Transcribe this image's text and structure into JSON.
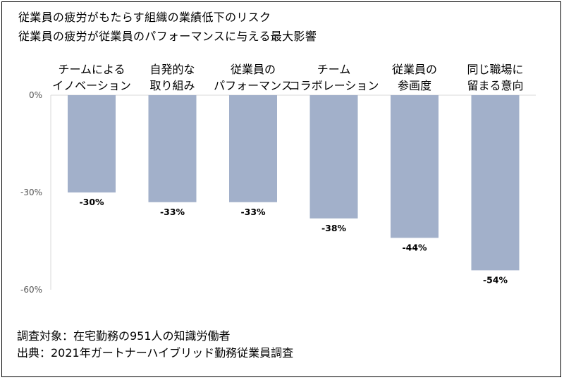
{
  "title_lines": [
    "従業員の疲労がもたらす組織の業績低下のリスク",
    "従業員の疲労が従業員のパフォーマンスに与える最大影響"
  ],
  "notes": [
    "調査対象：在宅勤務の951人の知識労働者",
    "出典：2021年ガートナーハイブリッド勤務従業員調査"
  ],
  "chart_data": {
    "type": "bar",
    "orientation": "vertical-downward",
    "categories": [
      [
        "チームによる",
        "イノベーション"
      ],
      [
        "自発的な",
        "取り組み"
      ],
      [
        "従業員の",
        "パフォーマンス"
      ],
      [
        "チーム",
        "コラボレーション"
      ],
      [
        "従業員の",
        "参画度"
      ],
      [
        "同じ職場に",
        "留まる意向"
      ]
    ],
    "values": [
      -30,
      -33,
      -33,
      -38,
      -44,
      -54
    ],
    "value_labels": [
      "-30%",
      "-33%",
      "-33%",
      "-38%",
      "-44%",
      "-54%"
    ],
    "yticks": [
      0,
      -30,
      -60
    ],
    "ytick_labels": [
      "0%",
      "-30%",
      "-60%"
    ],
    "ylim": [
      -60,
      0
    ],
    "bar_color": "#a2b0ca",
    "grid": false
  }
}
